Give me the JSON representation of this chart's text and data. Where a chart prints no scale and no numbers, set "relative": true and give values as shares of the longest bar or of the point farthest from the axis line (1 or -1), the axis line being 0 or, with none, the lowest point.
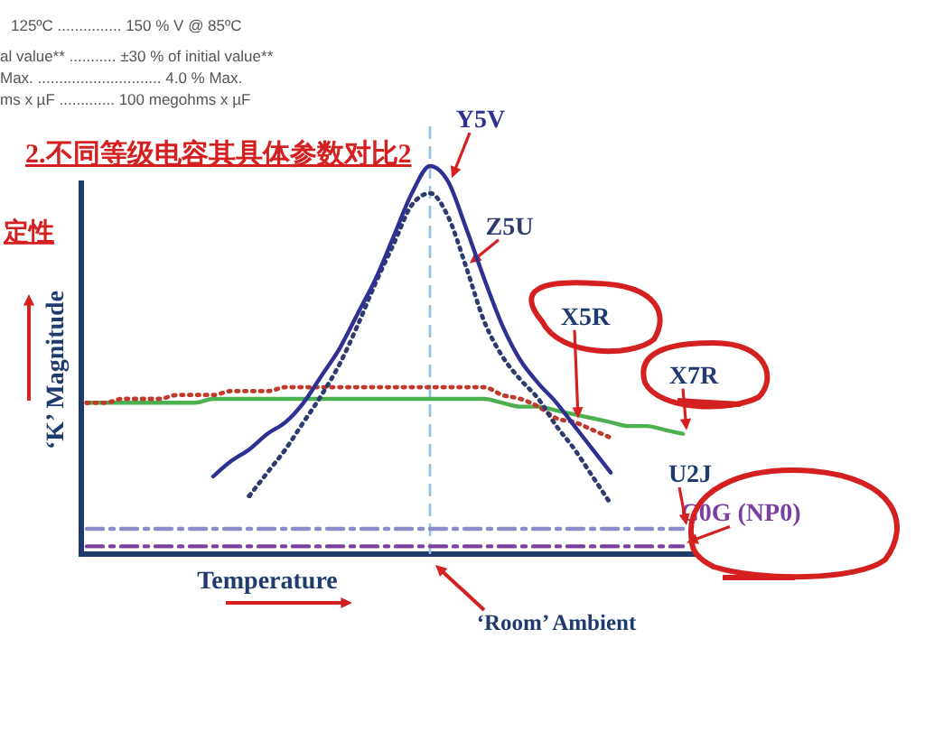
{
  "chart_data": {
    "type": "line",
    "title": "2.不同等级电容其具体参数对比2",
    "subtitle": "定性",
    "xlabel": "Temperature",
    "ylabel": "‘K’ Magnitude",
    "relative": true,
    "annotations": [
      "125ºC ............... 150 % V @ 85ºC",
      "al value** ........... ±30 % of initial value**",
      "Max. ............................. 4.0 % Max.",
      "ms x µF ............. 100 megohms x µF",
      "‘Room’ Ambient"
    ],
    "categories": [
      null,
      null,
      null,
      null,
      null,
      null,
      null,
      null,
      null,
      null,
      null,
      null,
      null,
      null,
      null,
      null,
      null,
      null,
      null,
      null,
      null,
      null,
      null,
      null,
      null,
      null,
      null,
      null,
      null,
      null,
      null,
      null,
      null,
      null
    ],
    "series": [
      {
        "name": "Y5V",
        "color": "#2e3192",
        "line_style": "solid",
        "values": [
          null,
          null,
          null,
          null,
          null,
          null,
          null,
          0.2,
          0.24,
          0.27,
          0.31,
          0.34,
          0.39,
          0.46,
          0.53,
          0.62,
          0.71,
          0.82,
          0.93,
          1,
          0.96,
          0.84,
          0.71,
          0.59,
          0.5,
          0.44,
          0.39,
          0.33,
          0.27,
          0.21,
          null,
          null,
          null,
          null
        ]
      },
      {
        "name": "Z5U",
        "color": "#2e3b6e",
        "line_style": "dotted",
        "values": [
          null,
          null,
          null,
          null,
          null,
          null,
          null,
          null,
          null,
          0.15,
          0.21,
          0.27,
          0.34,
          0.41,
          0.49,
          0.59,
          0.7,
          0.8,
          0.9,
          0.93,
          0.87,
          0.74,
          0.6,
          0.51,
          0.45,
          0.4,
          0.33,
          0.27,
          0.2,
          0.13,
          null,
          null,
          null,
          null
        ]
      },
      {
        "name": "X5R",
        "color": "#c0392b",
        "line_style": "dotted",
        "values": [
          0.39,
          0.39,
          0.4,
          0.4,
          0.4,
          0.41,
          0.41,
          0.41,
          0.42,
          0.42,
          0.42,
          0.43,
          0.43,
          0.43,
          0.43,
          0.43,
          0.43,
          0.43,
          0.43,
          0.43,
          0.43,
          0.43,
          0.43,
          0.41,
          0.4,
          0.38,
          0.35,
          0.34,
          0.32,
          0.3,
          null,
          null,
          null,
          null
        ]
      },
      {
        "name": "X7R",
        "color": "#4caf50",
        "line_style": "solid",
        "values": [
          0.39,
          0.39,
          0.39,
          0.39,
          0.39,
          0.39,
          0.39,
          0.4,
          0.4,
          0.4,
          0.4,
          0.4,
          0.4,
          0.4,
          0.4,
          0.4,
          0.4,
          0.4,
          0.4,
          0.4,
          0.4,
          0.4,
          0.4,
          0.39,
          0.38,
          0.38,
          0.37,
          0.36,
          0.35,
          0.34,
          0.33,
          0.33,
          0.32,
          0.31
        ]
      },
      {
        "name": "U2J",
        "color": "#8c8cc8",
        "line_style": "dashed",
        "values": [
          0.065,
          0.065,
          0.065,
          0.065,
          0.065,
          0.065,
          0.065,
          0.065,
          0.065,
          0.065,
          0.065,
          0.065,
          0.065,
          0.065,
          0.065,
          0.065,
          0.065,
          0.065,
          0.065,
          0.065,
          0.065,
          0.065,
          0.065,
          0.065,
          0.065,
          0.065,
          0.065,
          0.065,
          0.065,
          0.065,
          0.065,
          0.065,
          0.065,
          0.065
        ]
      },
      {
        "name": "C0G (NP0)",
        "color": "#7b3fa0",
        "line_style": "dashed",
        "values": [
          0.02,
          0.02,
          0.02,
          0.02,
          0.02,
          0.02,
          0.02,
          0.02,
          0.02,
          0.02,
          0.02,
          0.02,
          0.02,
          0.02,
          0.02,
          0.02,
          0.02,
          0.02,
          0.02,
          0.02,
          0.02,
          0.02,
          0.02,
          0.02,
          0.02,
          0.02,
          0.02,
          0.02,
          0.02,
          0.02,
          0.02,
          0.02,
          0.02,
          0.02
        ]
      }
    ],
    "ref_lines": [
      {
        "axis": "y",
        "value": 0,
        "color": "#1f3b6e"
      }
    ]
  }
}
